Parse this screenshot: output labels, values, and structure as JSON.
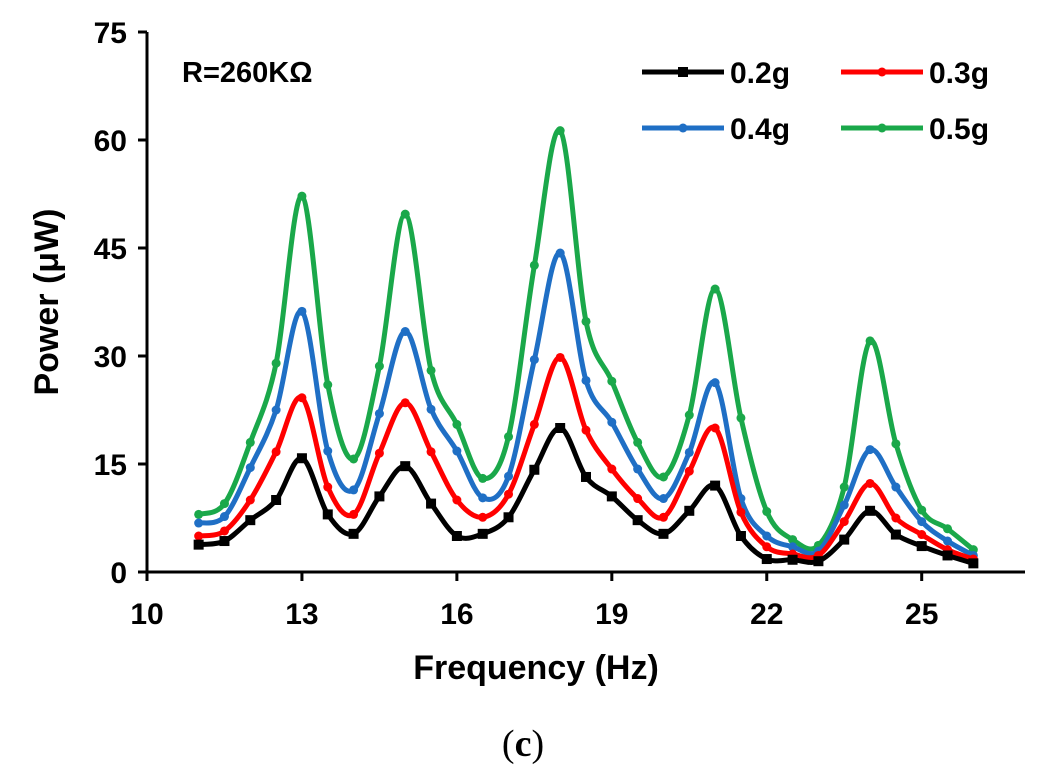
{
  "caption": {
    "open": "(",
    "letter": "c",
    "close": ")"
  },
  "chart_data": {
    "type": "line",
    "title": "",
    "annotation": "R=260KΩ",
    "xlabel": "Frequency (Hz)",
    "ylabel": "Power (μW)",
    "xlim": [
      10,
      27
    ],
    "ylim": [
      0,
      75
    ],
    "xticks": [
      10,
      13,
      16,
      19,
      22,
      25
    ],
    "yticks": [
      0,
      15,
      30,
      45,
      60,
      75
    ],
    "grid": false,
    "legend_position": "top-right",
    "x": [
      11,
      11.5,
      12,
      12.5,
      13,
      13.5,
      14,
      14.5,
      15,
      15.5,
      16,
      16.5,
      17,
      17.5,
      18,
      18.5,
      19,
      19.5,
      20,
      20.5,
      21,
      21.5,
      22,
      22.5,
      23,
      23.5,
      24,
      24.5,
      25,
      25.5,
      26
    ],
    "series": [
      {
        "name": "0.2g",
        "color": "#000000",
        "marker": "square",
        "values": [
          3.8,
          4.3,
          7.2,
          10,
          15.8,
          8,
          5.3,
          10.5,
          14.7,
          9.5,
          5,
          5.3,
          7.6,
          14.2,
          20,
          13.2,
          10.5,
          7.2,
          5.3,
          8.5,
          12,
          5,
          1.8,
          1.7,
          1.5,
          4.5,
          8.5,
          5.2,
          3.6,
          2.3,
          1.2
        ]
      },
      {
        "name": "0.3g",
        "color": "#ff0000",
        "marker": "circle",
        "values": [
          5,
          5.7,
          10,
          16.7,
          24.2,
          11.8,
          8,
          16.5,
          23.5,
          16.7,
          10,
          7.6,
          10.8,
          20.5,
          29.8,
          19.7,
          14.3,
          10.2,
          7.6,
          14,
          20,
          8.3,
          3.5,
          2.5,
          2.3,
          7,
          12.3,
          7.5,
          5.2,
          3.1,
          1.8
        ]
      },
      {
        "name": "0.4g",
        "color": "#1f6fc5",
        "marker": "circle",
        "values": [
          6.8,
          7.7,
          14.5,
          22.5,
          36.2,
          16.8,
          11.4,
          22,
          33.4,
          22.6,
          16.8,
          10.3,
          13.3,
          29.5,
          44.3,
          26.6,
          20.8,
          14.3,
          10.2,
          16.6,
          26.3,
          10.2,
          5,
          3.5,
          2.9,
          9.3,
          17,
          11.8,
          7,
          4.3,
          2.3
        ]
      },
      {
        "name": "0.5g",
        "color": "#1aa84a",
        "marker": "circle",
        "values": [
          8,
          9.5,
          18,
          29,
          52.2,
          26,
          15.7,
          28.6,
          49.7,
          28,
          20.5,
          13,
          18.8,
          42.6,
          61.3,
          34.8,
          26.5,
          18,
          13.2,
          21.8,
          39.3,
          21.4,
          8.4,
          4.5,
          3.7,
          11.8,
          32.1,
          17.8,
          8.6,
          6,
          3.1
        ]
      }
    ]
  }
}
